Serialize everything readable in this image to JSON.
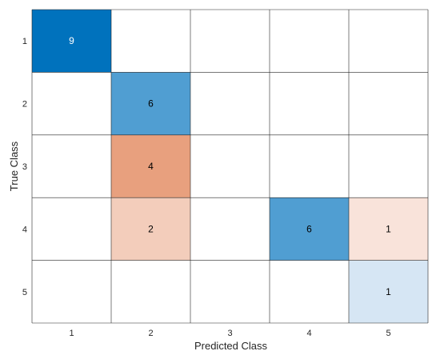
{
  "chart_data": {
    "type": "heatmap",
    "title": "",
    "xlabel": "Predicted Class",
    "ylabel": "True Class",
    "x_categories": [
      "1",
      "2",
      "3",
      "4",
      "5"
    ],
    "y_categories": [
      "1",
      "2",
      "3",
      "4",
      "5"
    ],
    "values": [
      [
        9,
        0,
        0,
        0,
        0
      ],
      [
        0,
        6,
        0,
        0,
        0
      ],
      [
        0,
        4,
        0,
        0,
        0
      ],
      [
        0,
        2,
        0,
        6,
        1
      ],
      [
        0,
        0,
        0,
        0,
        1
      ]
    ],
    "grid": true,
    "colors": {
      "diagonal_dark": "#0072bd",
      "diagonal_light": "#d6e6f4",
      "offdiag_dark": "#e8a07e",
      "offdiag_light": "#f9e3da",
      "grid": "#262626",
      "text_dark": "#000000",
      "text_light": "#ffffff"
    }
  }
}
